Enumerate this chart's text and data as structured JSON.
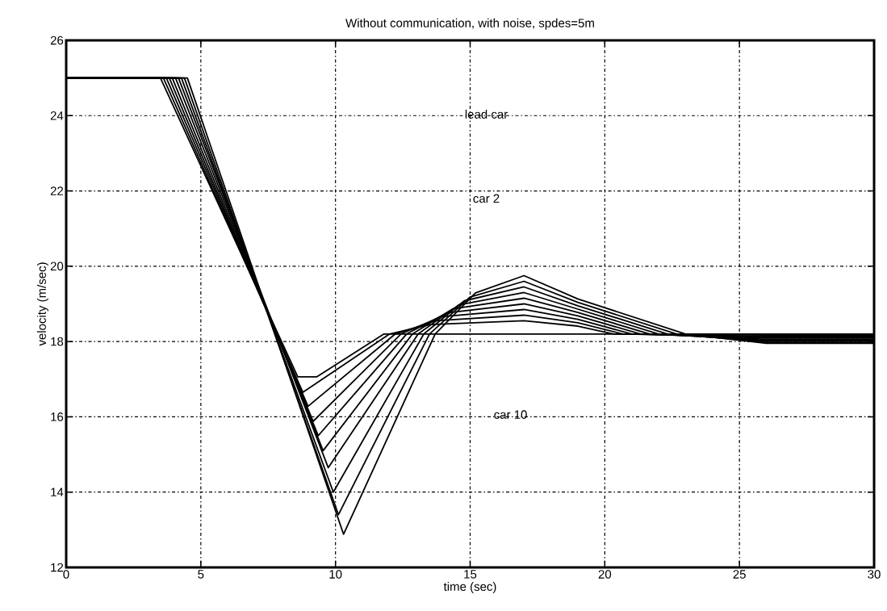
{
  "chart_data": {
    "type": "line",
    "title": "Without communication, with noise, spdes=5m",
    "xlabel": "time (sec)",
    "ylabel": "velocity (m/sec)",
    "annotations": [
      "lead car",
      "car 2",
      "car 10"
    ],
    "xlim": [
      0,
      30
    ],
    "ylim": [
      12,
      26
    ],
    "xticks": [
      0,
      5,
      10,
      15,
      20,
      25,
      30
    ],
    "yticks": [
      12,
      14,
      16,
      18,
      20,
      22,
      24,
      26
    ],
    "grid": true,
    "marker": "none",
    "line_style": "solid",
    "series": [
      {
        "color": "#000000",
        "x": [
          0,
          3.5,
          8.6,
          9.3,
          11.8,
          30
        ],
        "values": [
          25,
          25,
          17.06,
          17.06,
          18.2,
          18.2
        ]
      },
      {
        "color": "#000000",
        "x": [
          0,
          3.61,
          8.79,
          12.01,
          13.51,
          17,
          19,
          20.33,
          26,
          30
        ],
        "values": [
          25,
          25,
          16.65,
          18.2,
          18.45,
          18.55,
          18.41,
          18.2,
          18.17,
          18.17
        ]
      },
      {
        "color": "#000000",
        "x": [
          0,
          3.72,
          8.98,
          12.22,
          13.72,
          17,
          19,
          20.67,
          26,
          30
        ],
        "values": [
          25,
          25,
          16.28,
          18.2,
          18.55,
          18.7,
          18.5,
          18.2,
          18.14,
          18.14
        ]
      },
      {
        "color": "#000000",
        "x": [
          0,
          3.83,
          9.17,
          12.43,
          13.93,
          17,
          19,
          21,
          26,
          30
        ],
        "values": [
          25,
          25,
          15.88,
          18.2,
          18.66,
          18.85,
          18.59,
          18.2,
          18.12,
          18.12
        ]
      },
      {
        "color": "#000000",
        "x": [
          0,
          3.94,
          9.36,
          12.64,
          14.14,
          17,
          19,
          21.33,
          26,
          30
        ],
        "values": [
          25,
          25,
          15.5,
          18.2,
          18.76,
          19.0,
          18.68,
          18.2,
          18.09,
          18.09
        ]
      },
      {
        "color": "#000000",
        "x": [
          0,
          4.06,
          9.54,
          12.86,
          14.36,
          17,
          19,
          21.67,
          26,
          30
        ],
        "values": [
          25,
          25,
          15.1,
          18.2,
          18.87,
          19.15,
          18.77,
          18.2,
          18.06,
          18.06
        ]
      },
      {
        "color": "#000000",
        "x": [
          0,
          4.17,
          9.73,
          13.07,
          14.57,
          17,
          19,
          22,
          26,
          30
        ],
        "values": [
          25,
          25,
          14.65,
          18.2,
          18.97,
          19.3,
          18.86,
          18.2,
          18.03,
          18.03
        ]
      },
      {
        "color": "#000000",
        "x": [
          0,
          4.28,
          9.92,
          13.28,
          14.78,
          17,
          19,
          22.33,
          26,
          30
        ],
        "values": [
          25,
          25,
          14.0,
          18.2,
          19.08,
          19.45,
          18.95,
          18.2,
          18.01,
          18.01
        ]
      },
      {
        "color": "#000000",
        "x": [
          0,
          4.39,
          10.11,
          13.49,
          14.99,
          17,
          19,
          22.67,
          26,
          30
        ],
        "values": [
          25,
          25,
          13.4,
          18.2,
          19.18,
          19.6,
          19.04,
          18.2,
          17.98,
          17.98
        ]
      },
      {
        "color": "#000000",
        "x": [
          0,
          4.5,
          10.3,
          13.7,
          15.2,
          17,
          19,
          23,
          26,
          30
        ],
        "values": [
          25,
          25,
          12.88,
          18.2,
          19.29,
          19.75,
          19.13,
          18.2,
          17.95,
          17.95
        ]
      }
    ]
  }
}
